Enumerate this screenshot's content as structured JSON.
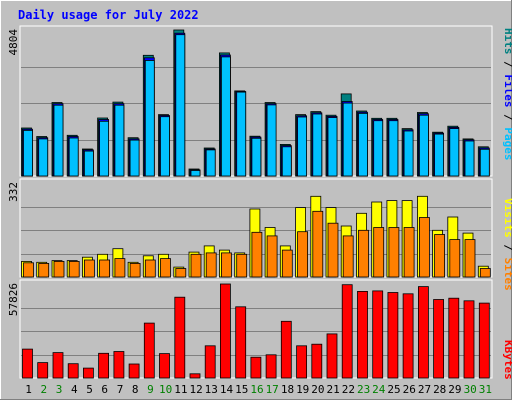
{
  "chart_data": [
    {
      "type": "bar",
      "title": "Daily usage for July 2022",
      "categories": [
        "1",
        "2",
        "3",
        "4",
        "5",
        "6",
        "7",
        "8",
        "9",
        "10",
        "11",
        "12",
        "13",
        "14",
        "15",
        "16",
        "17",
        "18",
        "19",
        "20",
        "21",
        "22",
        "23",
        "24",
        "25",
        "26",
        "27",
        "28",
        "29",
        "30",
        "31"
      ],
      "weekend_days": [
        "2",
        "3",
        "9",
        "10",
        "16",
        "17",
        "23",
        "24",
        "30",
        "31"
      ],
      "ymax_label": "4804",
      "ylim": [
        0,
        4804
      ],
      "series": [
        {
          "name": "Hits",
          "color": "#008080",
          "values": [
            1580,
            1300,
            2420,
            1340,
            890,
            1910,
            2430,
            1260,
            3970,
            2020,
            4804,
            230,
            920,
            4050,
            2800,
            1310,
            2420,
            1040,
            2020,
            2120,
            2000,
            2700,
            2140,
            1900,
            1900,
            1560,
            2090,
            1440,
            1640,
            1220,
            960
          ]
        },
        {
          "name": "Files",
          "color": "#0000ff",
          "values": [
            1540,
            1260,
            2380,
            1300,
            860,
            1860,
            2380,
            1220,
            3890,
            1990,
            4700,
            200,
            890,
            3980,
            2780,
            1280,
            2380,
            1000,
            1980,
            2080,
            1960,
            2450,
            2100,
            1860,
            1860,
            1520,
            2050,
            1410,
            1600,
            1190,
            920
          ]
        },
        {
          "name": "Pages",
          "color": "#00c0ff",
          "values": [
            1500,
            1220,
            2330,
            1250,
            820,
            1800,
            2330,
            1180,
            3800,
            1950,
            4650,
            180,
            860,
            3920,
            2760,
            1240,
            2340,
            960,
            1940,
            2040,
            1920,
            2400,
            2060,
            1820,
            1820,
            1480,
            2000,
            1380,
            1560,
            1150,
            880
          ]
        }
      ]
    },
    {
      "type": "bar",
      "ymax_label": "332",
      "ylim": [
        0,
        332
      ],
      "series": [
        {
          "name": "Visits",
          "color": "#ffff00",
          "values": [
            55,
            52,
            58,
            58,
            70,
            80,
            100,
            52,
            75,
            80,
            35,
            88,
            110,
            95,
            85,
            240,
            175,
            110,
            245,
            285,
            245,
            180,
            225,
            265,
            270,
            270,
            285,
            165,
            212,
            155,
            38
          ]
        },
        {
          "name": "Sites",
          "color": "#ff8000",
          "values": [
            50,
            48,
            55,
            55,
            60,
            60,
            65,
            48,
            60,
            65,
            30,
            80,
            85,
            85,
            80,
            158,
            145,
            95,
            160,
            232,
            190,
            145,
            165,
            175,
            175,
            175,
            210,
            150,
            132,
            132,
            30
          ]
        }
      ]
    },
    {
      "type": "bar",
      "ymax_label": "57826",
      "ylim": [
        0,
        57826
      ],
      "series": [
        {
          "name": "KBytes",
          "color": "#ff0000",
          "values": [
            17800,
            9500,
            15600,
            8800,
            6100,
            15200,
            16300,
            8600,
            33800,
            15000,
            49700,
            2600,
            19800,
            57826,
            43800,
            12800,
            14300,
            34900,
            19800,
            20800,
            27100,
            57400,
            53300,
            53600,
            52600,
            51800,
            56200,
            48300,
            49100,
            47500,
            46100
          ]
        }
      ]
    }
  ]
}
